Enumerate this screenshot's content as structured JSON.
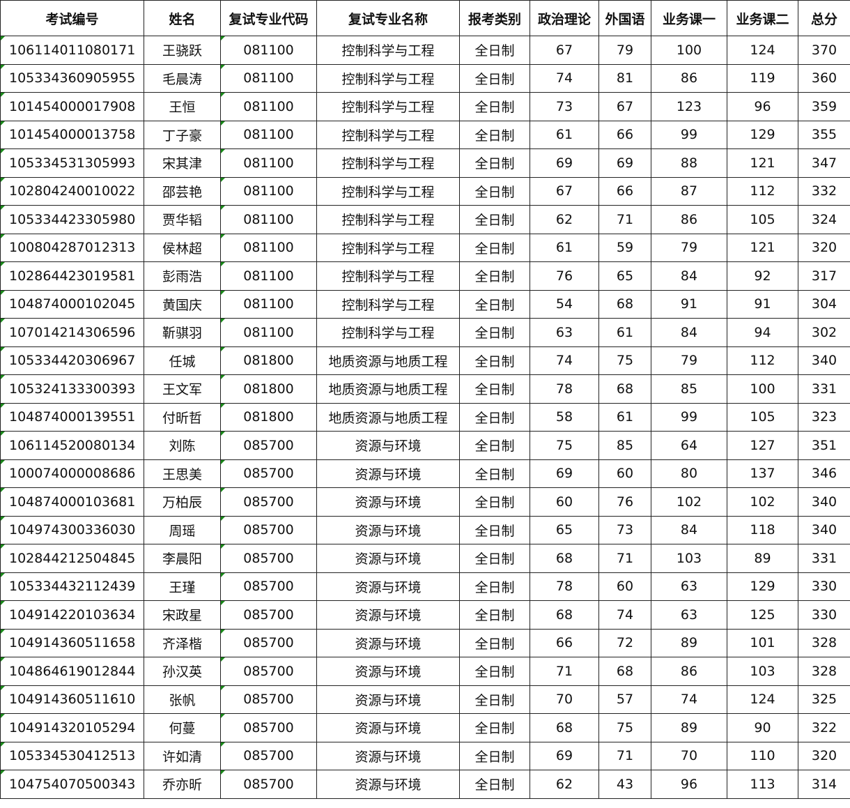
{
  "headers": [
    "考试编号",
    "姓名",
    "复试专业代码",
    "复试专业名称",
    "报考类别",
    "政治理论",
    "外国语",
    "业务课一",
    "业务课二",
    "总分"
  ],
  "rows": [
    [
      "106114011080171",
      "王骁跃",
      "081100",
      "控制科学与工程",
      "全日制",
      "67",
      "79",
      "100",
      "124",
      "370"
    ],
    [
      "105334360905955",
      "毛晨涛",
      "081100",
      "控制科学与工程",
      "全日制",
      "74",
      "81",
      "86",
      "119",
      "360"
    ],
    [
      "101454000017908",
      "王恒",
      "081100",
      "控制科学与工程",
      "全日制",
      "73",
      "67",
      "123",
      "96",
      "359"
    ],
    [
      "101454000013758",
      "丁子豪",
      "081100",
      "控制科学与工程",
      "全日制",
      "61",
      "66",
      "99",
      "129",
      "355"
    ],
    [
      "105334531305993",
      "宋其津",
      "081100",
      "控制科学与工程",
      "全日制",
      "69",
      "69",
      "88",
      "121",
      "347"
    ],
    [
      "102804240010022",
      "邵芸艳",
      "081100",
      "控制科学与工程",
      "全日制",
      "67",
      "66",
      "87",
      "112",
      "332"
    ],
    [
      "105334423305980",
      "贾华韬",
      "081100",
      "控制科学与工程",
      "全日制",
      "62",
      "71",
      "86",
      "105",
      "324"
    ],
    [
      "100804287012313",
      "侯林超",
      "081100",
      "控制科学与工程",
      "全日制",
      "61",
      "59",
      "79",
      "121",
      "320"
    ],
    [
      "102864423019581",
      "彭雨浩",
      "081100",
      "控制科学与工程",
      "全日制",
      "76",
      "65",
      "84",
      "92",
      "317"
    ],
    [
      "104874000102045",
      "黄国庆",
      "081100",
      "控制科学与工程",
      "全日制",
      "54",
      "68",
      "91",
      "91",
      "304"
    ],
    [
      "107014214306596",
      "靳骐羽",
      "081100",
      "控制科学与工程",
      "全日制",
      "63",
      "61",
      "84",
      "94",
      "302"
    ],
    [
      "105334420306967",
      "任城",
      "081800",
      "地质资源与地质工程",
      "全日制",
      "74",
      "75",
      "79",
      "112",
      "340"
    ],
    [
      "105324133300393",
      "王文军",
      "081800",
      "地质资源与地质工程",
      "全日制",
      "78",
      "68",
      "85",
      "100",
      "331"
    ],
    [
      "104874000139551",
      "付昕哲",
      "081800",
      "地质资源与地质工程",
      "全日制",
      "58",
      "61",
      "99",
      "105",
      "323"
    ],
    [
      "106114520080134",
      "刘陈",
      "085700",
      "资源与环境",
      "全日制",
      "75",
      "85",
      "64",
      "127",
      "351"
    ],
    [
      "100074000008686",
      "王思美",
      "085700",
      "资源与环境",
      "全日制",
      "69",
      "60",
      "80",
      "137",
      "346"
    ],
    [
      "104874000103681",
      "万柏辰",
      "085700",
      "资源与环境",
      "全日制",
      "60",
      "76",
      "102",
      "102",
      "340"
    ],
    [
      "104974300336030",
      "周瑶",
      "085700",
      "资源与环境",
      "全日制",
      "65",
      "73",
      "84",
      "118",
      "340"
    ],
    [
      "102844212504845",
      "李晨阳",
      "085700",
      "资源与环境",
      "全日制",
      "68",
      "71",
      "103",
      "89",
      "331"
    ],
    [
      "105334432112439",
      "王瑾",
      "085700",
      "资源与环境",
      "全日制",
      "78",
      "60",
      "63",
      "129",
      "330"
    ],
    [
      "104914220103634",
      "宋政星",
      "085700",
      "资源与环境",
      "全日制",
      "68",
      "74",
      "63",
      "125",
      "330"
    ],
    [
      "104914360511658",
      "齐泽楷",
      "085700",
      "资源与环境",
      "全日制",
      "66",
      "72",
      "89",
      "101",
      "328"
    ],
    [
      "104864619012844",
      "孙汉英",
      "085700",
      "资源与环境",
      "全日制",
      "71",
      "68",
      "86",
      "103",
      "328"
    ],
    [
      "104914360511610",
      "张帆",
      "085700",
      "资源与环境",
      "全日制",
      "70",
      "57",
      "74",
      "124",
      "325"
    ],
    [
      "104914320105294",
      "何蔓",
      "085700",
      "资源与环境",
      "全日制",
      "68",
      "75",
      "89",
      "90",
      "322"
    ],
    [
      "105334530412513",
      "许如清",
      "085700",
      "资源与环境",
      "全日制",
      "69",
      "71",
      "70",
      "110",
      "320"
    ],
    [
      "104754070500343",
      "乔亦昕",
      "085700",
      "资源与环境",
      "全日制",
      "62",
      "43",
      "96",
      "113",
      "314"
    ]
  ],
  "colors": {
    "border": "#222222",
    "error_flag": "#1a8a1a"
  }
}
